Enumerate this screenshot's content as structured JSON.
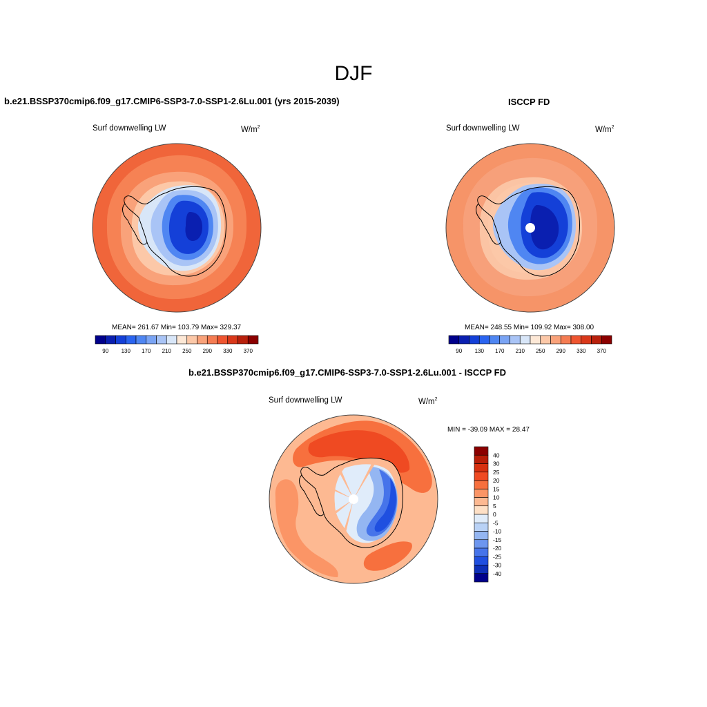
{
  "figure": {
    "season": "DJF"
  },
  "panels": {
    "model": {
      "case_title": "b.e21.BSSP370cmip6.f09_g17.CMIP6-SSP3-7.0-SSP1-2.6Lu.001 (yrs 2015-2039)",
      "variable": "Surf downwelling LW",
      "units": "W/m",
      "units_exp": "2",
      "stats": "MEAN= 261.67  Min= 103.79  Max= 329.37"
    },
    "obs": {
      "case_title": "ISCCP FD",
      "variable": "Surf downwelling LW",
      "units": "W/m",
      "units_exp": "2",
      "stats": "MEAN= 248.55  Min= 109.92  Max= 308.00"
    },
    "diff": {
      "case_title": "b.e21.BSSP370cmip6.f09_g17.CMIP6-SSP3-7.0-SSP1-2.6Lu.001 - ISCCP FD",
      "variable": "Surf downwelling LW",
      "units": "W/m",
      "units_exp": "2",
      "stats": "MIN = -39.09 MAX =  28.47"
    }
  },
  "colorbars": {
    "absolute": {
      "colors": [
        "#00008b",
        "#0a1fb0",
        "#1440d8",
        "#2a64f0",
        "#4f86f2",
        "#7aa4f4",
        "#a9c4f6",
        "#d8e6f8",
        "#fde8d6",
        "#fcc8a8",
        "#f9a27a",
        "#f57c52",
        "#ef5530",
        "#d9381a",
        "#b8200c",
        "#8b0000"
      ],
      "tick_labels": [
        "90",
        "130",
        "170",
        "210",
        "250",
        "290",
        "330",
        "370"
      ]
    },
    "difference": {
      "colors": [
        "#8b0000",
        "#b81d08",
        "#d73010",
        "#ef4a22",
        "#f7703e",
        "#fb9566",
        "#fdb992",
        "#fee0c6",
        "#e0ecfa",
        "#b9d2f6",
        "#94b6f2",
        "#6d96ef",
        "#4674ea",
        "#1f4fe0",
        "#0d2fb8",
        "#00008b"
      ],
      "tick_labels": [
        "40",
        "30",
        "25",
        "20",
        "15",
        "10",
        "5",
        "0",
        "-5",
        "-10",
        "-15",
        "-20",
        "-25",
        "-30",
        "-40"
      ]
    }
  },
  "map_colors": {
    "ocean_far": "#f0653a",
    "ocean_mid": "#f68254",
    "ocean_near": "#f9a27a",
    "coast": "#fcc8a8",
    "ice_edge": "#d8e6f8",
    "ice_light": "#a9c4f6",
    "ice_mid": "#4f86f2",
    "ice_deep": "#1440d8",
    "ice_core": "#0a1fb0",
    "obs_ocean_far": "#f69468",
    "obs_ocean_mid": "#f7a07a",
    "obs_ocean_near": "#fbc4a4",
    "diff_pos_strong": "#ef4a22",
    "diff_pos": "#f7703e",
    "diff_pos_weak": "#fb9566",
    "diff_pos_faint": "#fdb992",
    "diff_neg_faint": "#e0ecfa",
    "diff_neg": "#94b6f2",
    "diff_neg_strong": "#4674ea",
    "diff_neg_deep": "#1f4fe0"
  }
}
